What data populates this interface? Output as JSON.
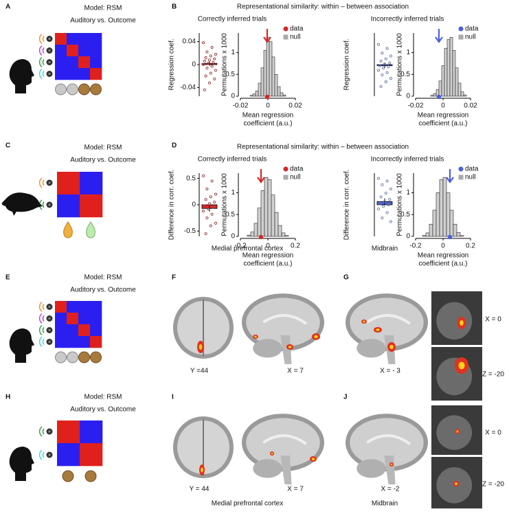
{
  "A": {
    "label": "A",
    "title": "Model: RSM",
    "subtitle": "Auditory vs. Outcome"
  },
  "B": {
    "label": "B",
    "title": "Representational similarity: within – between association",
    "groups": [
      {
        "heading": "Correctly inferred trials",
        "color": "#d62728",
        "point_color": "#9b3b3b",
        "coef": {
          "ylabel": "Regression coef.",
          "ylim": [
            -0.055,
            0.055
          ],
          "yticks": [
            0.04,
            0,
            -0.04
          ],
          "mean": 0.002,
          "sem": 0.004,
          "points": [
            0.038,
            0.03,
            0.022,
            0.018,
            0.015,
            0.012,
            0.01,
            0.008,
            0.006,
            0.004,
            0.002,
            0,
            -0.003,
            -0.006,
            -0.01,
            -0.015,
            -0.02,
            -0.025,
            -0.032,
            -0.044
          ]
        },
        "hist": {
          "ylabel": "Permutations x 1000",
          "xlabel": [
            "Mean regression",
            "coefficient (a.u.)"
          ],
          "xlim": [
            -0.02,
            0.02
          ],
          "xticks": [
            -0.02,
            0,
            0.02
          ],
          "ylim": [
            0,
            1.45
          ],
          "yticks": [
            1,
            0.5,
            0
          ],
          "bins": [
            -0.013,
            -0.011,
            -0.009,
            -0.007,
            -0.005,
            -0.003,
            -0.001,
            0.001,
            0.003,
            0.005,
            0.007,
            0.009,
            0.011,
            0.013
          ],
          "counts": [
            0.02,
            0.05,
            0.12,
            0.3,
            0.65,
            1.05,
            1.35,
            1.25,
            0.9,
            0.5,
            0.22,
            0.08,
            0.03
          ],
          "observed": -0.0005,
          "legend": [
            "data",
            "null"
          ],
          "null_color": "#aaaaaa"
        }
      },
      {
        "heading": "Incorrectly inferred trials",
        "color": "#4a5fe0",
        "point_color": "#6a7fa8",
        "coef": {
          "ylabel": "Regression coef.",
          "ylim": [
            -0.055,
            0.055
          ],
          "yticks": [],
          "mean": -0.002,
          "sem": 0.004,
          "points": [
            0.035,
            0.028,
            0.02,
            0.015,
            0.01,
            0.006,
            0.003,
            0.001,
            -0.002,
            -0.004,
            -0.006,
            -0.01,
            -0.014,
            -0.018,
            -0.024,
            -0.03,
            -0.038
          ]
        },
        "hist": {
          "ylabel": "Permutations x 1000",
          "xlabel": [
            "Mean regression",
            "coefficient (a.u.)"
          ],
          "xlim": [
            -0.02,
            0.02
          ],
          "xticks": [
            -0.02,
            0,
            0.02
          ],
          "ylim": [
            0,
            1.45
          ],
          "yticks": [
            1,
            0.5,
            0
          ],
          "bins": [
            -0.009,
            -0.007,
            -0.005,
            -0.003,
            -0.001,
            0.001,
            0.003,
            0.005,
            0.007,
            0.009,
            0.011,
            0.013,
            0.015,
            0.017
          ],
          "counts": [
            0.02,
            0.06,
            0.15,
            0.35,
            0.7,
            1.1,
            1.3,
            1.35,
            1.05,
            0.65,
            0.3,
            0.1,
            0.03
          ],
          "observed": -0.003,
          "legend": [
            "data",
            "null"
          ],
          "null_color": "#aaaaaa"
        }
      }
    ]
  },
  "C": {
    "label": "C",
    "title": "Model: RSM",
    "subtitle": "Auditory vs. Outcome"
  },
  "D": {
    "label": "D",
    "title": "Representational similarity: within – between association",
    "groups": [
      {
        "heading": "Correctly inferred trials",
        "color": "#d62728",
        "point_color": "#9b3b3b",
        "coef": {
          "ylabel": "Difference in corr. coef.",
          "ylim": [
            -0.6,
            0.6
          ],
          "yticks": [
            0.5,
            0,
            -0.5
          ],
          "mean": -0.07,
          "sem": 0.06,
          "points": [
            0.55,
            0.45,
            0.3,
            0.2,
            0.15,
            0.1,
            0.05,
            0.02,
            -0.02,
            -0.05,
            -0.08,
            -0.12,
            -0.18,
            -0.25,
            -0.35,
            -0.4,
            -0.55
          ]
        },
        "hist": {
          "ylabel": "Permutations x 1000",
          "xlabel": [
            "Mean regression",
            "coefficient (a.u.)"
          ],
          "xlim": [
            -0.2,
            0.2
          ],
          "xticks": [
            -0.2,
            0,
            0.2
          ],
          "ylim": [
            0,
            1.45
          ],
          "yticks": [
            1,
            0.5,
            0
          ],
          "bins": [
            -0.15,
            -0.125,
            -0.1,
            -0.075,
            -0.05,
            -0.025,
            0,
            0.025,
            0.05,
            0.075,
            0.1,
            0.125,
            0.15
          ],
          "counts": [
            0.03,
            0.1,
            0.3,
            0.65,
            1.05,
            1.35,
            1.3,
            0.95,
            0.55,
            0.25,
            0.08,
            0.02
          ],
          "observed": -0.05,
          "legend": [
            "data",
            "null"
          ],
          "null_color": "#aaaaaa"
        }
      },
      {
        "heading": "Incorrectly inferred trials",
        "color": "#4a5fe0",
        "point_color": "#6a7fa8",
        "coef": {
          "ylabel": "Difference in corr. coef.",
          "ylim": [
            -0.6,
            0.6
          ],
          "yticks": [],
          "mean": 0.06,
          "sem": 0.06,
          "points": [
            0.5,
            0.45,
            0.38,
            0.3,
            0.22,
            0.15,
            0.1,
            0.06,
            0.03,
            0,
            -0.03,
            -0.08,
            -0.15,
            -0.25,
            -0.32
          ]
        },
        "hist": {
          "ylabel": "Permutations x 1000",
          "xlabel": [
            "Mean regression",
            "coefficient (a.u.)"
          ],
          "xlim": [
            -0.2,
            0.2
          ],
          "xticks": [
            -0.2,
            0,
            0.2
          ],
          "ylim": [
            0,
            1.45
          ],
          "yticks": [
            1,
            0.5,
            0
          ],
          "bins": [
            -0.15,
            -0.125,
            -0.1,
            -0.075,
            -0.05,
            -0.025,
            0,
            0.025,
            0.05,
            0.075,
            0.1,
            0.125,
            0.15
          ],
          "counts": [
            0.02,
            0.08,
            0.28,
            0.6,
            1.0,
            1.3,
            1.35,
            1.0,
            0.6,
            0.28,
            0.09,
            0.02
          ],
          "observed": 0.05,
          "legend": [
            "data",
            "null"
          ],
          "null_color": "#aaaaaa"
        }
      }
    ]
  },
  "E": {
    "label": "E",
    "title": "Model: RSM",
    "subtitle": "Auditory vs. Outcome"
  },
  "F": {
    "label": "F",
    "slices": [
      "Y =44",
      "X = 7"
    ],
    "caption": "Medial prefrontal cortex"
  },
  "G": {
    "label": "G",
    "slices": [
      "X = - 3"
    ],
    "caption": "Midbrain",
    "insets": [
      "X = 0",
      "Z = -20"
    ]
  },
  "H": {
    "label": "H",
    "title": "Model: RSM",
    "subtitle": "Auditory vs. Outcome"
  },
  "I": {
    "label": "I",
    "slices": [
      "Y = 44",
      "X = 7"
    ],
    "caption": "Medial prefrontal cortex"
  },
  "J": {
    "label": "J",
    "slices": [
      "X = -2"
    ],
    "caption": "Midbrain",
    "insets": [
      "X = 0",
      "Z = -20"
    ]
  }
}
